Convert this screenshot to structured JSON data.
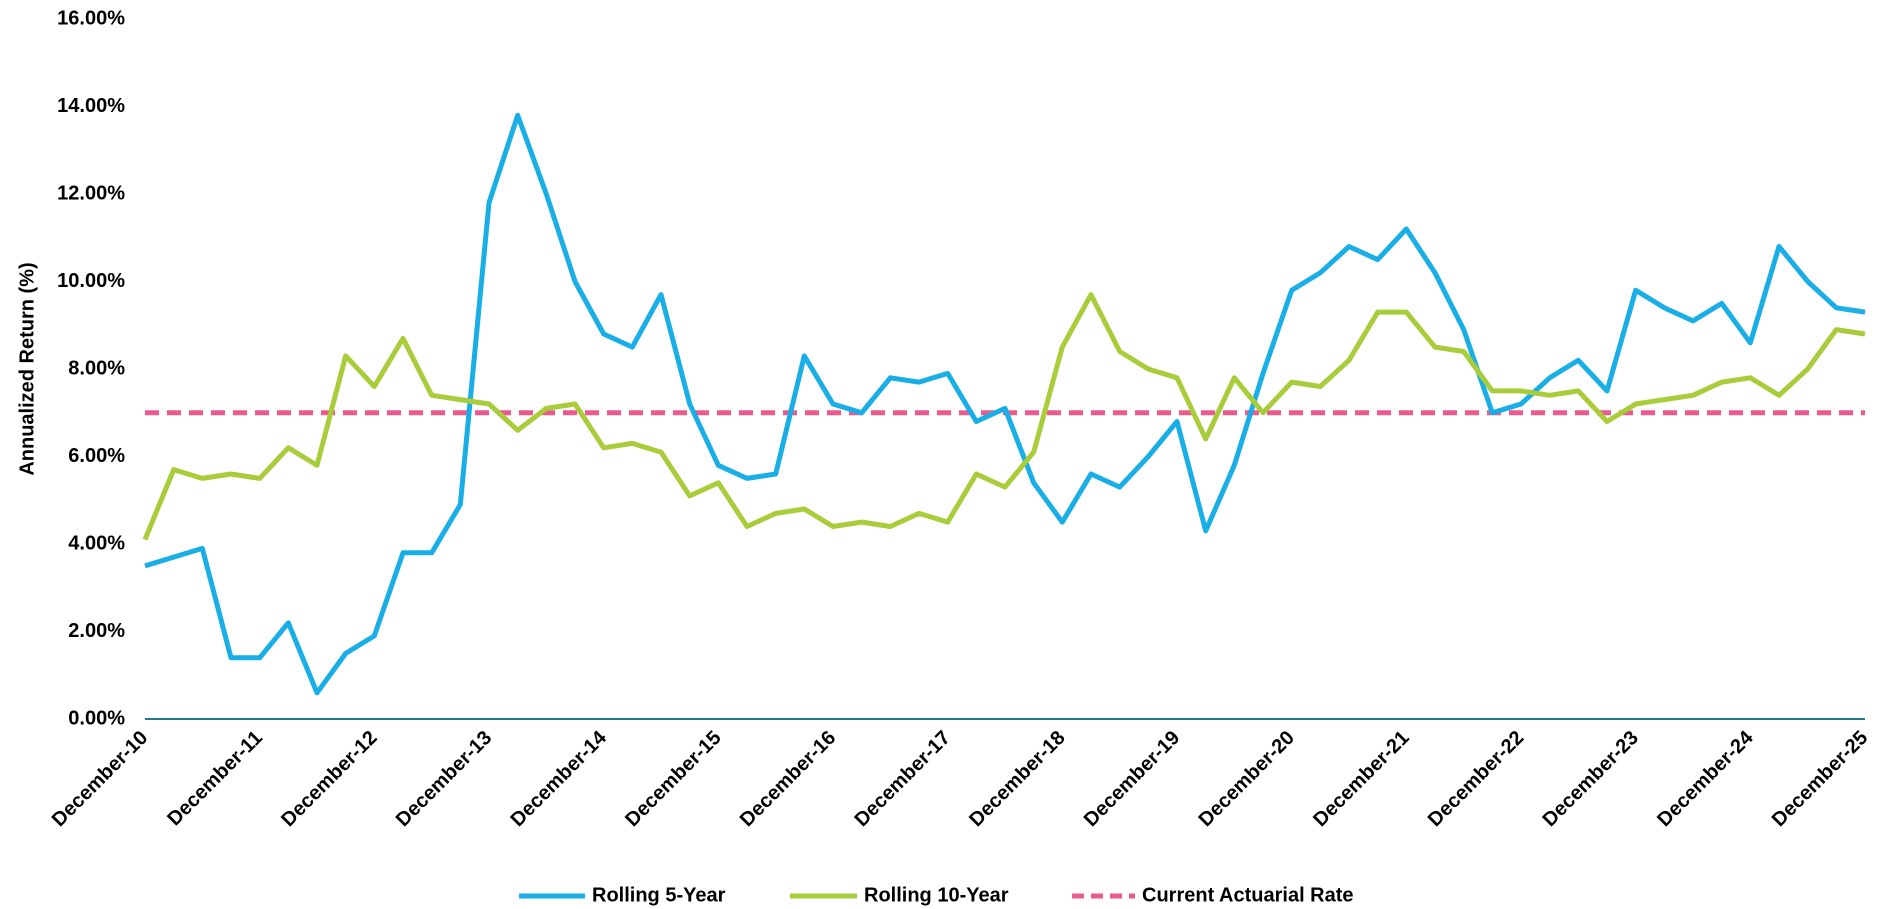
{
  "chart_data": {
    "type": "line",
    "y_label": "Annualized Return (%)",
    "categories": [
      "December-10",
      null,
      null,
      null,
      "December-11",
      null,
      null,
      null,
      "December-12",
      null,
      null,
      null,
      "December-13",
      null,
      null,
      null,
      "December-14",
      null,
      null,
      null,
      "December-15",
      null,
      null,
      null,
      "December-16",
      null,
      null,
      null,
      "December-17",
      null,
      null,
      null,
      "December-18",
      null,
      null,
      null,
      "December-19",
      null,
      null,
      null,
      "December-20",
      null,
      null,
      null,
      "December-21",
      null,
      null,
      null,
      "December-22",
      null,
      null,
      null,
      "December-23",
      null,
      null,
      null,
      "December-24",
      null,
      null,
      null,
      "December-25"
    ],
    "series": [
      {
        "name": "Rolling 5-Year",
        "color": "#1aaee6",
        "values": [
          3.5,
          3.7,
          3.9,
          1.4,
          1.4,
          2.2,
          0.6,
          1.5,
          1.9,
          3.8,
          3.8,
          4.9,
          11.8,
          13.8,
          12.0,
          10.0,
          8.8,
          8.5,
          9.7,
          7.2,
          5.8,
          5.5,
          5.6,
          8.3,
          7.2,
          7.0,
          7.8,
          7.7,
          7.9,
          6.8,
          7.1,
          5.4,
          4.5,
          5.6,
          5.3,
          6.0,
          6.8,
          4.3,
          5.8,
          7.9,
          9.8,
          10.2,
          10.8,
          10.5,
          11.2,
          10.2,
          8.9,
          7.0,
          7.2,
          7.8,
          8.2,
          7.5,
          9.8,
          9.4,
          9.1,
          9.5,
          8.6,
          10.8,
          10.0,
          9.4,
          9.3
        ]
      },
      {
        "name": "Rolling 10-Year",
        "color": "#a8cc3a",
        "values": [
          4.1,
          5.7,
          5.5,
          5.6,
          5.5,
          6.2,
          5.8,
          8.3,
          7.6,
          8.7,
          7.4,
          7.3,
          7.2,
          6.6,
          7.1,
          7.2,
          6.2,
          6.3,
          6.1,
          5.1,
          5.4,
          4.4,
          4.7,
          4.8,
          4.4,
          4.5,
          4.4,
          4.7,
          4.5,
          5.6,
          5.3,
          6.1,
          8.5,
          9.7,
          8.4,
          8.0,
          7.8,
          6.4,
          7.8,
          7.0,
          7.7,
          7.6,
          8.2,
          9.3,
          9.3,
          8.5,
          8.4,
          7.5,
          7.5,
          7.4,
          7.5,
          6.8,
          7.2,
          7.3,
          7.4,
          7.7,
          7.8,
          7.4,
          8.0,
          8.9,
          8.8
        ]
      }
    ],
    "reference": {
      "name": "Current Actuarial Rate",
      "value": 7,
      "color": "#eb5a8c"
    },
    "ylim": [
      0,
      16
    ],
    "yticks": [
      {
        "value": 0,
        "label": "0.00%"
      },
      {
        "value": 2,
        "label": "2.00%"
      },
      {
        "value": 4,
        "label": "4.00%"
      },
      {
        "value": 6,
        "label": "6.00%"
      },
      {
        "value": 8,
        "label": "8.00%"
      },
      {
        "value": 10,
        "label": "10.00%"
      },
      {
        "value": 12,
        "label": "12.00%"
      },
      {
        "value": 14,
        "label": "14.00%"
      },
      {
        "value": 16,
        "label": "16.00%"
      }
    ],
    "axis_color": "#1f7a8c"
  }
}
